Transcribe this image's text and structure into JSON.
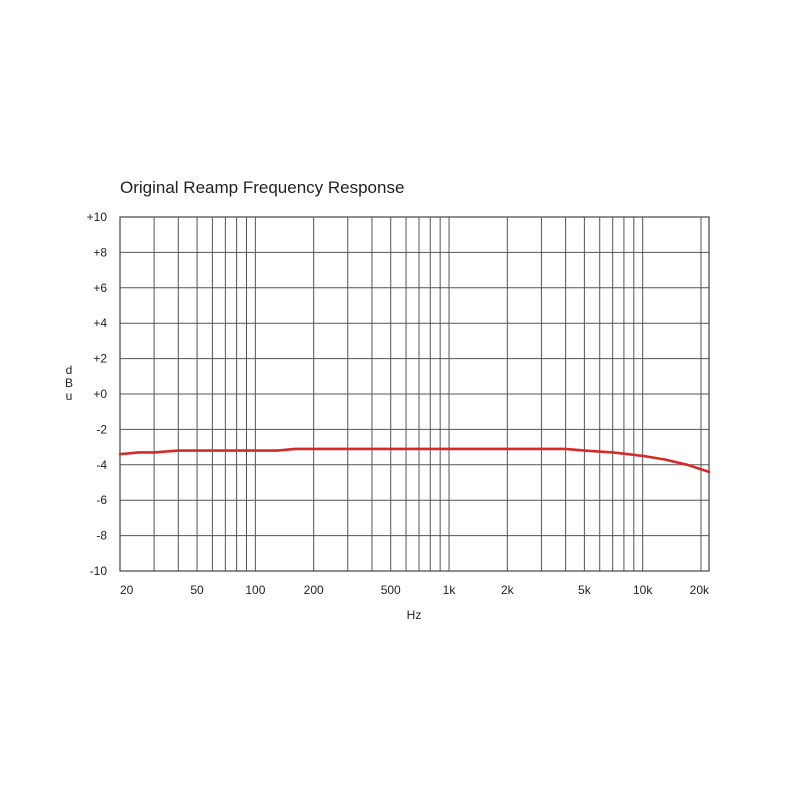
{
  "chart_data": {
    "type": "line",
    "title": "Original Reamp Frequency Response",
    "xlabel": "Hz",
    "ylabel": "dBu",
    "x_scale": "log",
    "xlim": [
      20,
      22000
    ],
    "ylim": [
      -10,
      10
    ],
    "grid": true,
    "x_ticks": [
      {
        "value": 20,
        "label": "20"
      },
      {
        "value": 50,
        "label": "50"
      },
      {
        "value": 100,
        "label": "100"
      },
      {
        "value": 200,
        "label": "200"
      },
      {
        "value": 500,
        "label": "500"
      },
      {
        "value": 1000,
        "label": "1k"
      },
      {
        "value": 2000,
        "label": "2k"
      },
      {
        "value": 5000,
        "label": "5k"
      },
      {
        "value": 10000,
        "label": "10k"
      },
      {
        "value": 20000,
        "label": "20k"
      }
    ],
    "y_ticks": [
      {
        "value": 10,
        "label": "+10"
      },
      {
        "value": 8,
        "label": "+8"
      },
      {
        "value": 6,
        "label": "+6"
      },
      {
        "value": 4,
        "label": "+4"
      },
      {
        "value": 2,
        "label": "+2"
      },
      {
        "value": 0,
        "label": "+0"
      },
      {
        "value": -2,
        "label": "-2"
      },
      {
        "value": -4,
        "label": "-4"
      },
      {
        "value": -6,
        "label": "-6"
      },
      {
        "value": -8,
        "label": "-8"
      },
      {
        "value": -10,
        "label": "-10"
      }
    ],
    "series": [
      {
        "color": "#d42a2a",
        "x": [
          20,
          25,
          30,
          40,
          50,
          100,
          130,
          160,
          200,
          500,
          1000,
          2000,
          4000,
          5000,
          7000,
          10000,
          13000,
          17000,
          22000
        ],
        "y": [
          -3.4,
          -3.3,
          -3.3,
          -3.2,
          -3.2,
          -3.2,
          -3.2,
          -3.1,
          -3.1,
          -3.1,
          -3.1,
          -3.1,
          -3.1,
          -3.2,
          -3.3,
          -3.5,
          -3.7,
          -4.0,
          -4.4
        ]
      }
    ]
  }
}
